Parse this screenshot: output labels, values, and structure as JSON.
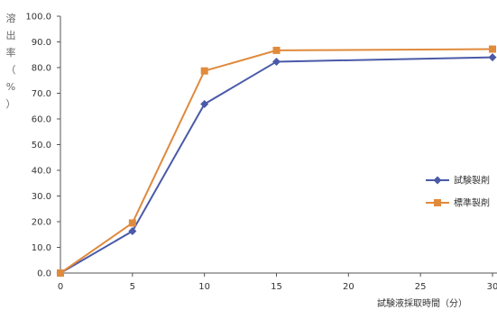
{
  "chart_data": {
    "type": "line",
    "title": "",
    "xlabel": "試験液採取時間（分）",
    "ylabel": "溶出率（%）",
    "xlim": [
      0,
      30
    ],
    "ylim": [
      0,
      100
    ],
    "x_ticks": [
      "0",
      "5",
      "10",
      "15",
      "20",
      "25",
      "30"
    ],
    "y_ticks": [
      "0.0",
      "10.0",
      "20.0",
      "30.0",
      "40.0",
      "50.0",
      "60.0",
      "70.0",
      "80.0",
      "90.0",
      "100.0"
    ],
    "grid": false,
    "legend_position": "right",
    "x": [
      0,
      5,
      10,
      15,
      30
    ],
    "series": [
      {
        "name": "試験製剤",
        "values": [
          0,
          16.3,
          65.8,
          82.3,
          84.0
        ],
        "color": "#4a5aa8",
        "marker": "diamond"
      },
      {
        "name": "標準製剤",
        "values": [
          0,
          19.5,
          78.7,
          86.7,
          87.2
        ],
        "color": "#e08a3c",
        "marker": "square"
      }
    ]
  }
}
